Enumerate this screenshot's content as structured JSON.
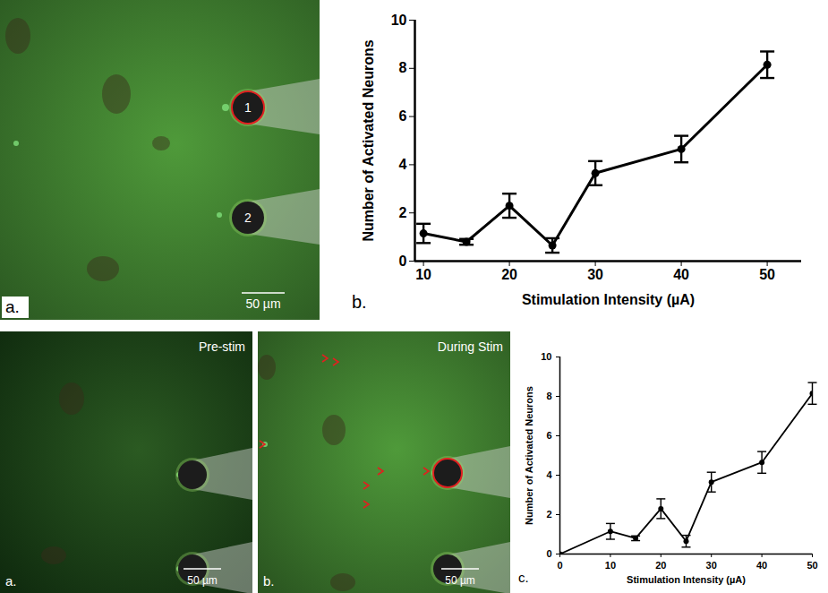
{
  "chart_data": [
    {
      "type": "line",
      "annotations": [
        "b."
      ],
      "x": [
        10,
        15,
        20,
        25,
        30,
        40,
        50
      ],
      "values": [
        1.15,
        0.8,
        2.3,
        0.65,
        3.65,
        4.65,
        8.15
      ],
      "errors": [
        0.4,
        0.12,
        0.5,
        0.3,
        0.5,
        0.55,
        0.55
      ],
      "x_label": "Stimulation Intensity (µA)",
      "y_label": "Number of Activated Neurons",
      "xlim": [
        9,
        54
      ],
      "xticks": [
        10,
        20,
        30,
        40,
        50
      ],
      "ylim": [
        0,
        10
      ],
      "yticks": [
        0,
        2,
        4,
        6,
        8,
        10
      ],
      "color": "#000000",
      "marker": "circle",
      "line_style": "solid",
      "grid": false
    },
    {
      "type": "line",
      "annotations": [
        "c."
      ],
      "x": [
        0,
        10,
        15,
        20,
        25,
        30,
        40,
        50
      ],
      "values": [
        0,
        1.15,
        0.8,
        2.3,
        0.65,
        3.65,
        4.65,
        8.15
      ],
      "errors": [
        null,
        0.4,
        0.12,
        0.5,
        0.3,
        0.5,
        0.55,
        0.55
      ],
      "x_label": "Stimulation Intensity (µA)",
      "y_label": "Number of Activated Neurons",
      "xlim": [
        0,
        50
      ],
      "xticks": [
        0,
        10,
        20,
        30,
        40,
        50
      ],
      "ylim": [
        0,
        10
      ],
      "yticks": [
        0,
        2,
        4,
        6,
        8,
        10
      ],
      "color": "#000000",
      "marker": "circle",
      "line_style": "solid",
      "grid": false
    }
  ],
  "images": [
    {
      "panel_label": "a.",
      "electrode_labels": [
        "1",
        "2"
      ],
      "scale_bar": "50 µm"
    },
    {
      "panel_label": "a.",
      "caption": "Pre-stim",
      "scale_bar": "50 µm"
    },
    {
      "panel_label": "b.",
      "caption": "During Stim",
      "scale_bar": "50 µm"
    }
  ]
}
